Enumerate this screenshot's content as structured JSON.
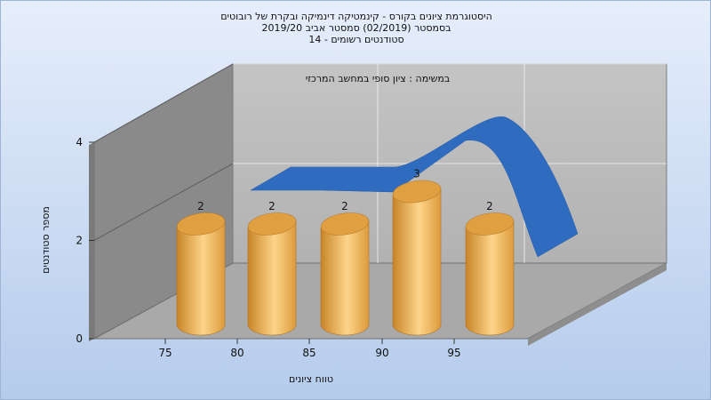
{
  "chart_data": {
    "type": "bar",
    "title": [
      "היסטוגרמת ציונים בקורס - קינמטיקה דינמיקה ובקרת של רובוטים",
      "בסמסטר   (02/2019)  סמסטר אביב 2019/20",
      "סטודנטים רשומים - 14"
    ],
    "subtitle": "במשימה : ציון סופי במחשב המרכזי",
    "xlabel": "טווח ציונים",
    "ylabel": "מספר סטודנטים",
    "x_ticks": [
      "75",
      "80",
      "85",
      "90",
      "95"
    ],
    "y_ticks": [
      "0",
      "2",
      "4"
    ],
    "ylim": [
      0,
      4
    ],
    "categories": [
      "75",
      "80",
      "85",
      "90",
      "95"
    ],
    "values": [
      2,
      2,
      2,
      3,
      2
    ],
    "data_labels": [
      "2",
      "2",
      "2",
      "3",
      "2"
    ],
    "series_colors": {
      "bars": "#e3a347",
      "line": "#2f6cc0"
    }
  }
}
